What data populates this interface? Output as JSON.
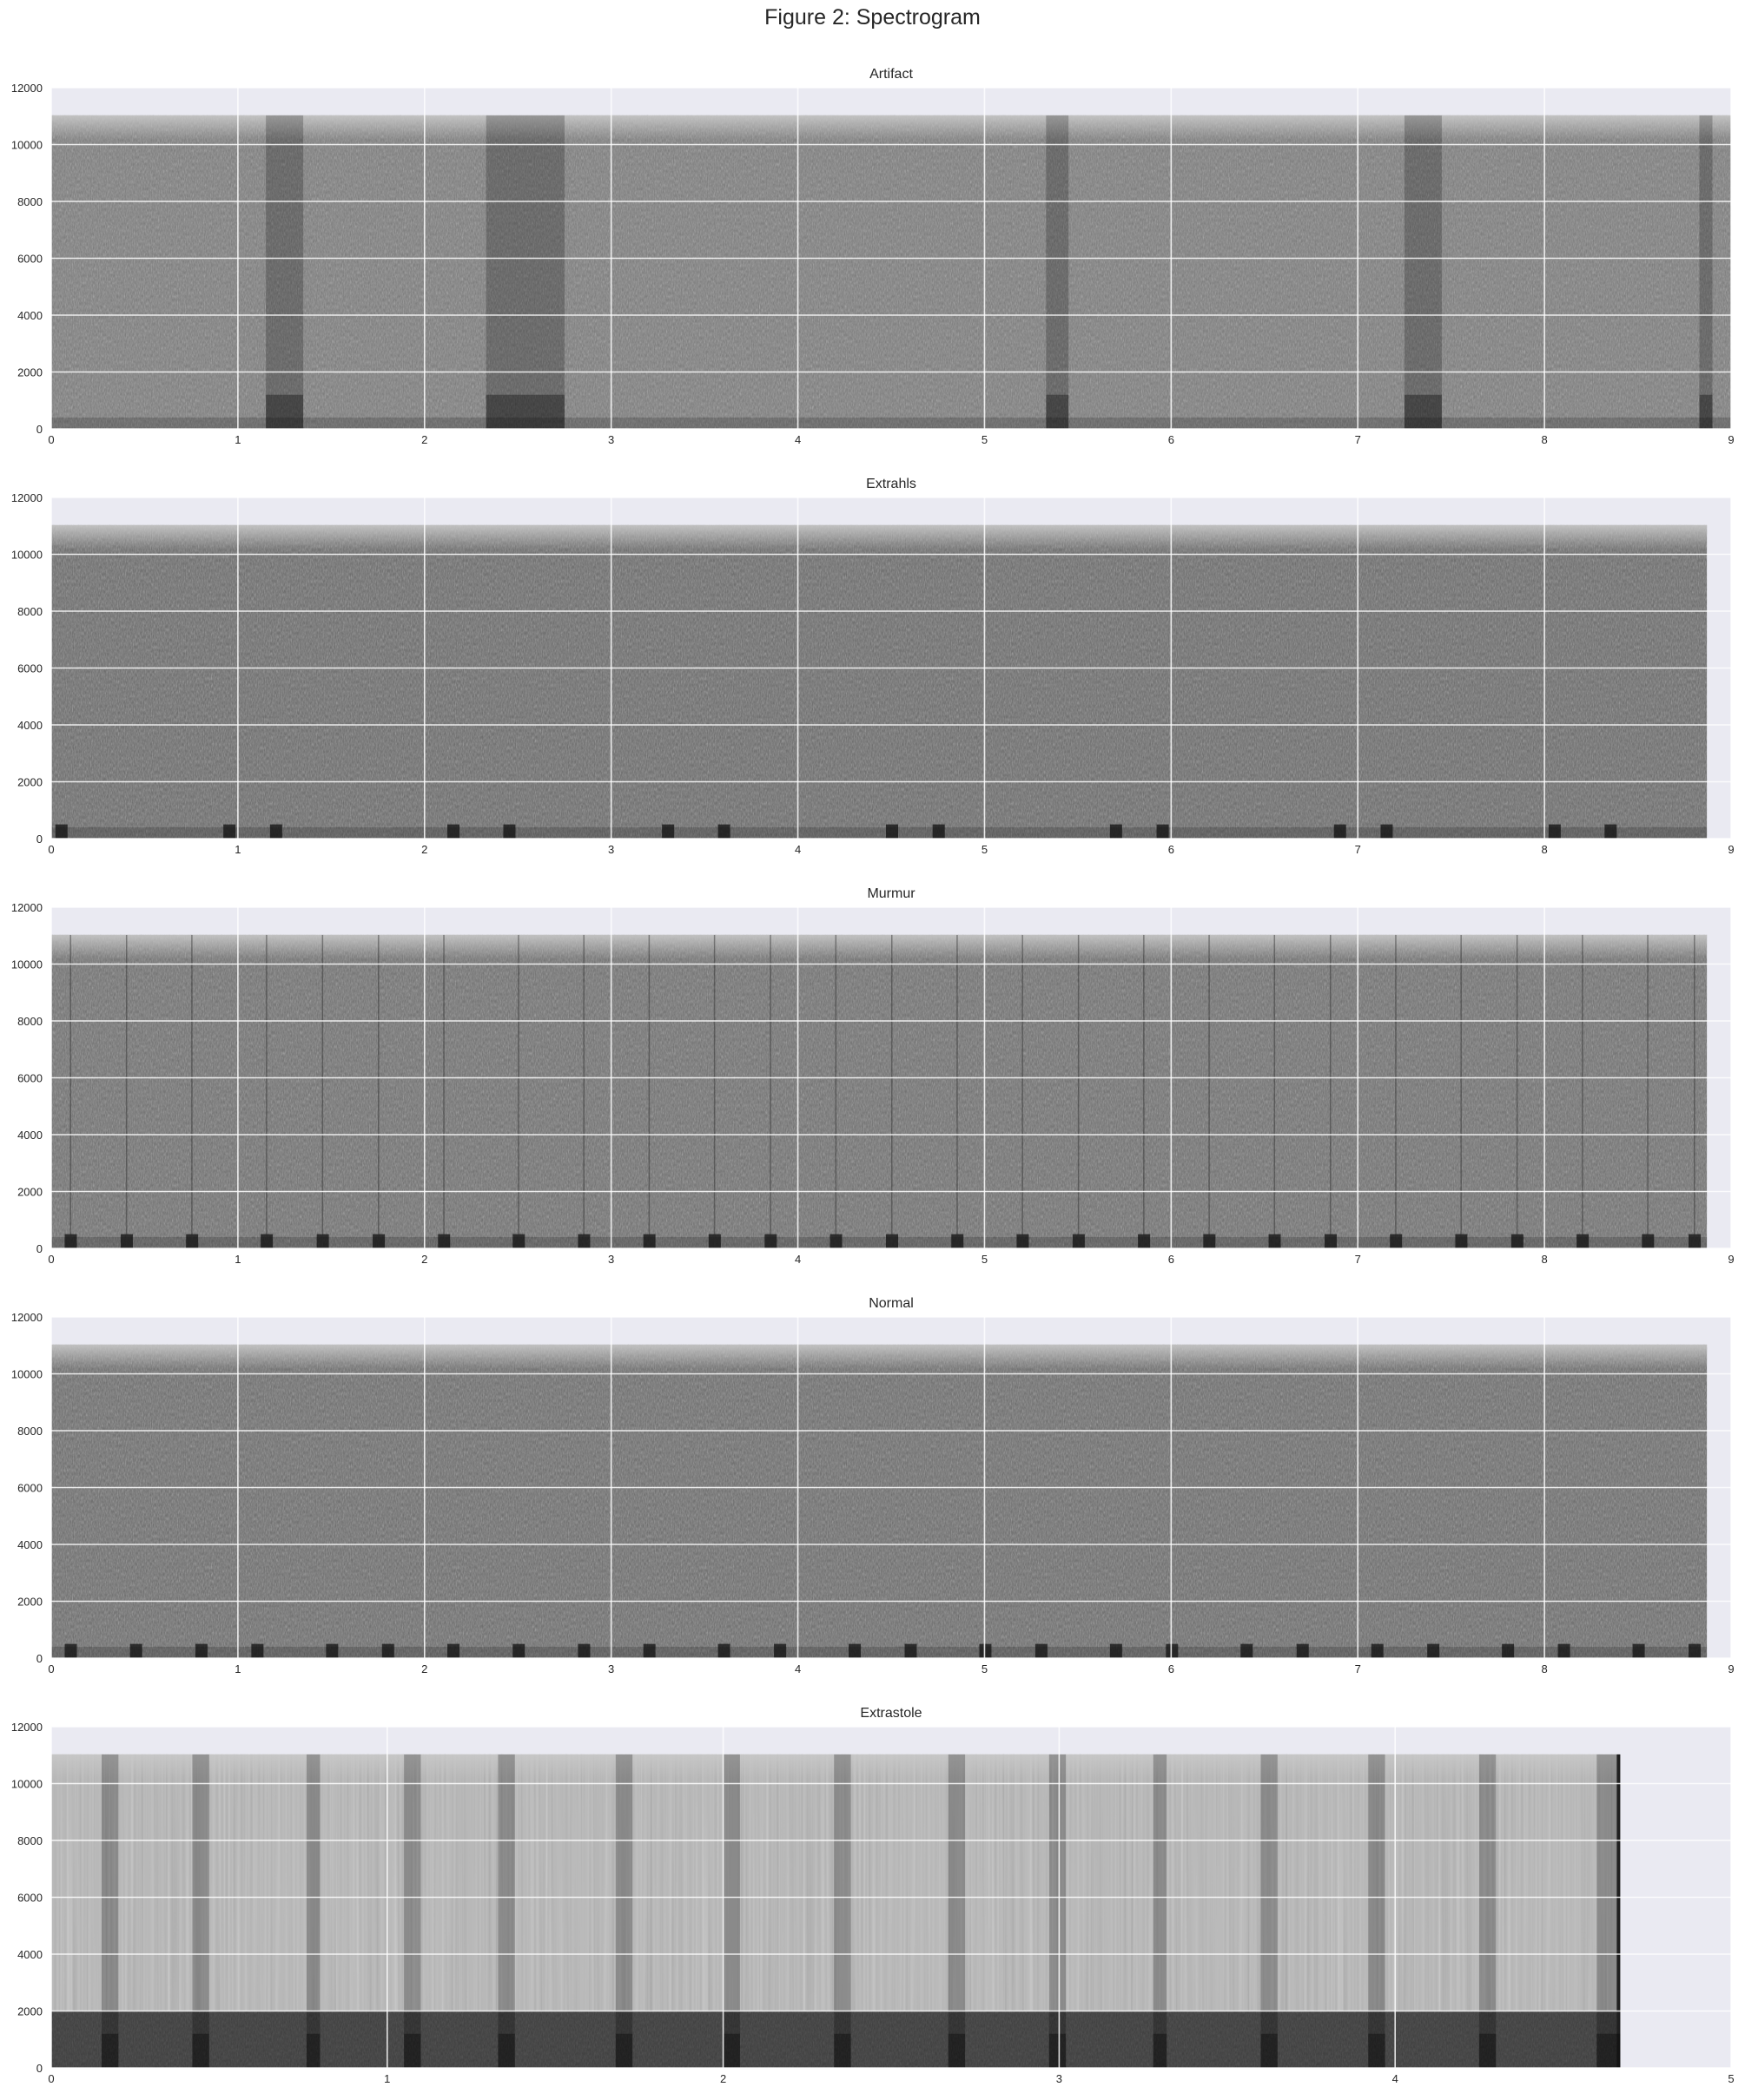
{
  "figure": {
    "title": "Figure 2: Spectrogram"
  },
  "colors": {
    "axes_background": "#eaeaf2",
    "grid": "#ffffff",
    "colormap": "gray"
  },
  "chart_data": [
    {
      "type": "heatmap",
      "title": "Artifact",
      "xlabel": "",
      "ylabel": "",
      "xlim": [
        0,
        9
      ],
      "ylim": [
        0,
        12000
      ],
      "x_ticks": [
        "0",
        "1",
        "2",
        "3",
        "4",
        "5",
        "6",
        "7",
        "8",
        "9"
      ],
      "y_ticks": [
        "0",
        "2000",
        "4000",
        "6000",
        "8000",
        "10000",
        "12000"
      ],
      "signal_duration": 9.0,
      "max_frequency": 11025,
      "grid": true,
      "dark_bands": [
        [
          1.15,
          1.35
        ],
        [
          2.33,
          2.75
        ],
        [
          5.33,
          5.45
        ],
        [
          7.25,
          7.45
        ],
        [
          8.83,
          8.9
        ]
      ]
    },
    {
      "type": "heatmap",
      "title": "Extrahls",
      "xlabel": "",
      "ylabel": "",
      "xlim": [
        0,
        9
      ],
      "ylim": [
        0,
        12000
      ],
      "x_ticks": [
        "0",
        "1",
        "2",
        "3",
        "4",
        "5",
        "6",
        "7",
        "8",
        "9"
      ],
      "y_ticks": [
        "0",
        "2000",
        "4000",
        "6000",
        "8000",
        "10000",
        "12000"
      ],
      "signal_duration": 8.87,
      "max_frequency": 11025,
      "grid": true,
      "beats": [
        0.05,
        0.95,
        1.2,
        2.15,
        2.45,
        3.3,
        3.6,
        4.5,
        4.75,
        5.7,
        5.95,
        6.9,
        7.15,
        8.05,
        8.35
      ]
    },
    {
      "type": "heatmap",
      "title": "Murmur",
      "xlabel": "",
      "ylabel": "",
      "xlim": [
        0,
        9
      ],
      "ylim": [
        0,
        12000
      ],
      "x_ticks": [
        "0",
        "1",
        "2",
        "3",
        "4",
        "5",
        "6",
        "7",
        "8",
        "9"
      ],
      "y_ticks": [
        "0",
        "2000",
        "4000",
        "6000",
        "8000",
        "10000",
        "12000"
      ],
      "signal_duration": 8.87,
      "max_frequency": 11025,
      "grid": true,
      "beats": [
        0.1,
        0.4,
        0.75,
        1.15,
        1.45,
        1.75,
        2.1,
        2.5,
        2.85,
        3.2,
        3.55,
        3.85,
        4.2,
        4.5,
        4.85,
        5.2,
        5.5,
        5.85,
        6.2,
        6.55,
        6.85,
        7.2,
        7.55,
        7.85,
        8.2,
        8.55,
        8.8
      ]
    },
    {
      "type": "heatmap",
      "title": "Normal",
      "xlabel": "",
      "ylabel": "",
      "xlim": [
        0,
        9
      ],
      "ylim": [
        0,
        12000
      ],
      "x_ticks": [
        "0",
        "1",
        "2",
        "3",
        "4",
        "5",
        "6",
        "7",
        "8",
        "9"
      ],
      "y_ticks": [
        "0",
        "2000",
        "4000",
        "6000",
        "8000",
        "10000",
        "12000"
      ],
      "signal_duration": 8.87,
      "max_frequency": 11025,
      "grid": true,
      "beats": [
        0.1,
        0.45,
        0.8,
        1.1,
        1.5,
        1.8,
        2.15,
        2.5,
        2.85,
        3.2,
        3.6,
        3.9,
        4.3,
        4.6,
        5.0,
        5.3,
        5.7,
        6.0,
        6.4,
        6.7,
        7.1,
        7.4,
        7.8,
        8.1,
        8.5,
        8.8
      ]
    },
    {
      "type": "heatmap",
      "title": "Extrastole",
      "xlabel": "",
      "ylabel": "",
      "xlim": [
        0,
        5
      ],
      "ylim": [
        0,
        12000
      ],
      "x_ticks": [
        "0",
        "1",
        "2",
        "3",
        "4",
        "5"
      ],
      "y_ticks": [
        "0",
        "2000",
        "4000",
        "6000",
        "8000",
        "10000",
        "12000"
      ],
      "signal_duration": 4.67,
      "max_frequency": 11025,
      "grid": true,
      "dark_bands": [
        [
          0.15,
          0.2
        ],
        [
          0.42,
          0.47
        ],
        [
          0.76,
          0.8
        ],
        [
          1.05,
          1.1
        ],
        [
          1.33,
          1.38
        ],
        [
          1.68,
          1.73
        ],
        [
          2.0,
          2.05
        ],
        [
          2.33,
          2.38
        ],
        [
          2.67,
          2.72
        ],
        [
          2.97,
          3.02
        ],
        [
          3.28,
          3.32
        ],
        [
          3.6,
          3.65
        ],
        [
          3.92,
          3.97
        ],
        [
          4.25,
          4.3
        ],
        [
          4.6,
          4.67
        ]
      ]
    }
  ]
}
